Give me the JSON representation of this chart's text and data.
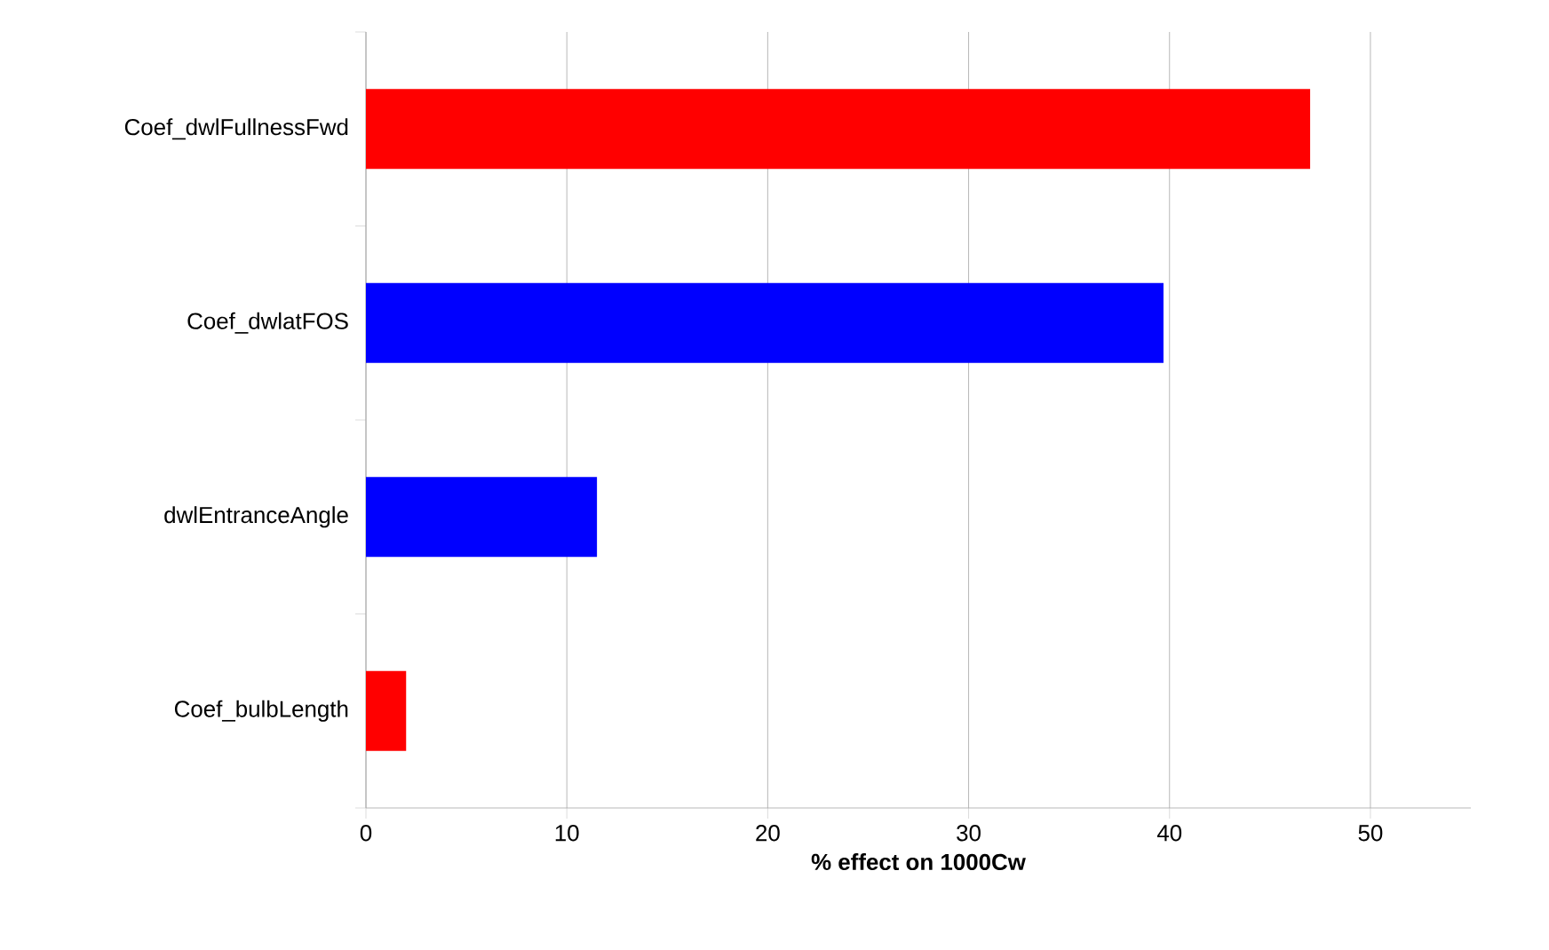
{
  "chart_data": {
    "type": "bar",
    "orientation": "horizontal",
    "xlabel": "% effect on 1000Cw",
    "categories": [
      "Coef_dwlFullnessFwd",
      "Coef_dwlatFOS",
      "dwlEntranceAngle",
      "Coef_bulbLength"
    ],
    "values": [
      47,
      39.7,
      11.5,
      2.0
    ],
    "colors": [
      "#ff0000",
      "#0000ff",
      "#0000ff",
      "#ff0000"
    ],
    "xlim": [
      0,
      55
    ],
    "xticks": [
      0,
      10,
      20,
      30,
      40,
      50
    ],
    "grid": "x"
  }
}
